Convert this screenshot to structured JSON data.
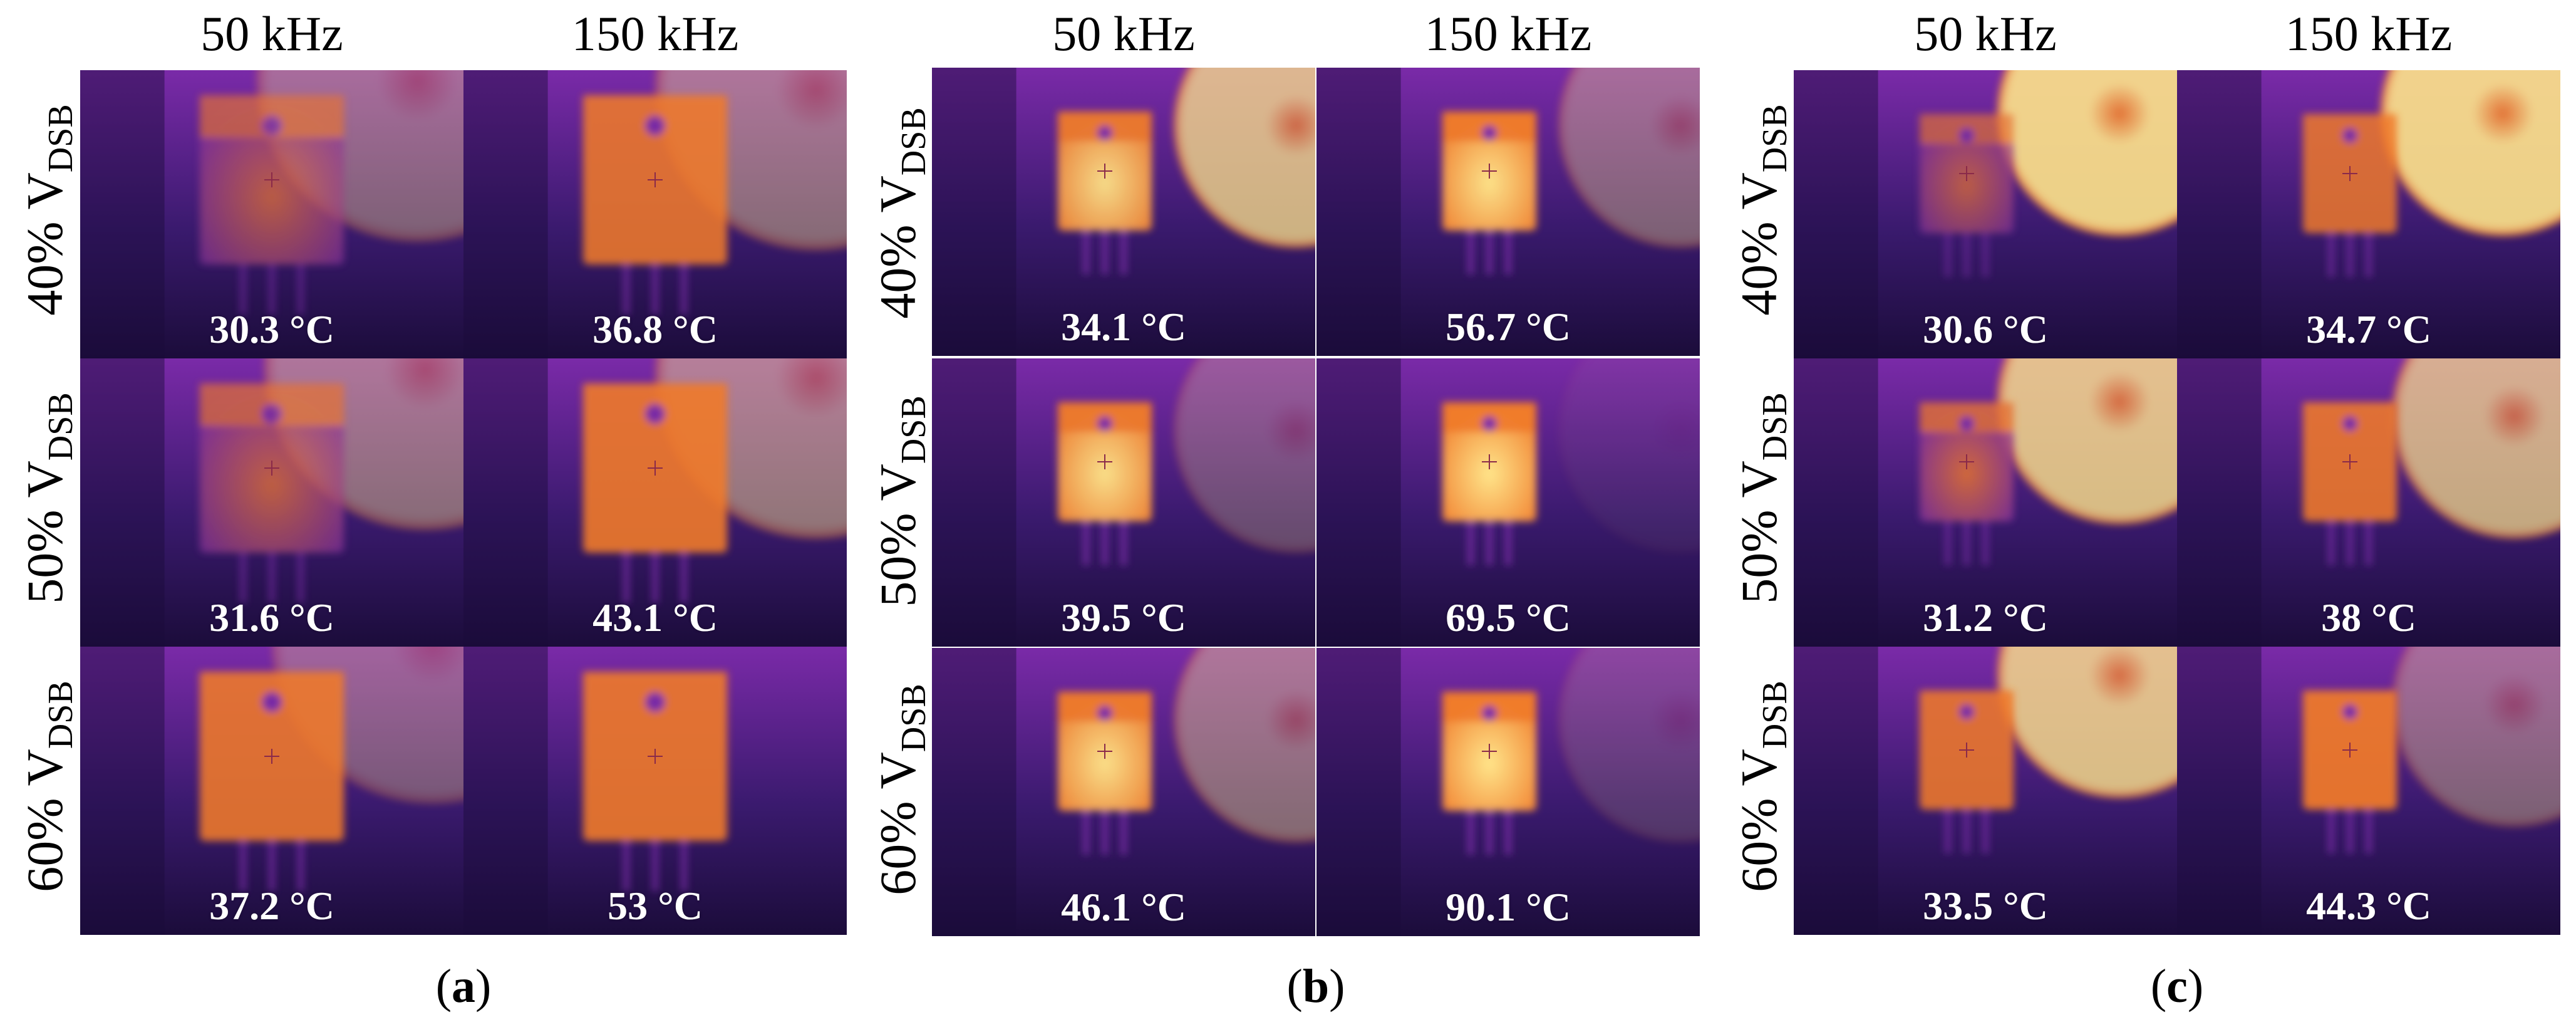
{
  "column_headers": [
    "50 kHz",
    "150 kHz"
  ],
  "row_label_unit": "V",
  "row_label_subscript": "DSB",
  "row_percents": [
    "40%",
    "50%",
    "60%"
  ],
  "panels": [
    {
      "label": "a",
      "rows": [
        {
          "temps": [
            "30.3 °C",
            "36.8 °C"
          ]
        },
        {
          "temps": [
            "31.6 °C",
            "43.1 °C"
          ]
        },
        {
          "temps": [
            "37.2 °C",
            "53 °C"
          ]
        }
      ]
    },
    {
      "label": "b",
      "rows": [
        {
          "temps": [
            "34.1 °C",
            "56.7 °C"
          ]
        },
        {
          "temps": [
            "39.5 °C",
            "69.5 °C"
          ]
        },
        {
          "temps": [
            "46.1 °C",
            "90.1 °C"
          ]
        }
      ]
    },
    {
      "label": "c",
      "rows": [
        {
          "temps": [
            "30.6 °C",
            "34.7 °C"
          ]
        },
        {
          "temps": [
            "31.2 °C",
            "38 °C"
          ]
        },
        {
          "temps": [
            "33.5 °C",
            "44.3 °C"
          ]
        }
      ]
    }
  ],
  "colors": {
    "thermal_bg": "#3a1a6e",
    "thermal_dark": "#1b0c3a",
    "thermal_mid": "#7a2aa8",
    "thermal_hot": "#f07a2a",
    "thermal_hottest": "#ffe58a",
    "temp_text": "#ffffff"
  }
}
